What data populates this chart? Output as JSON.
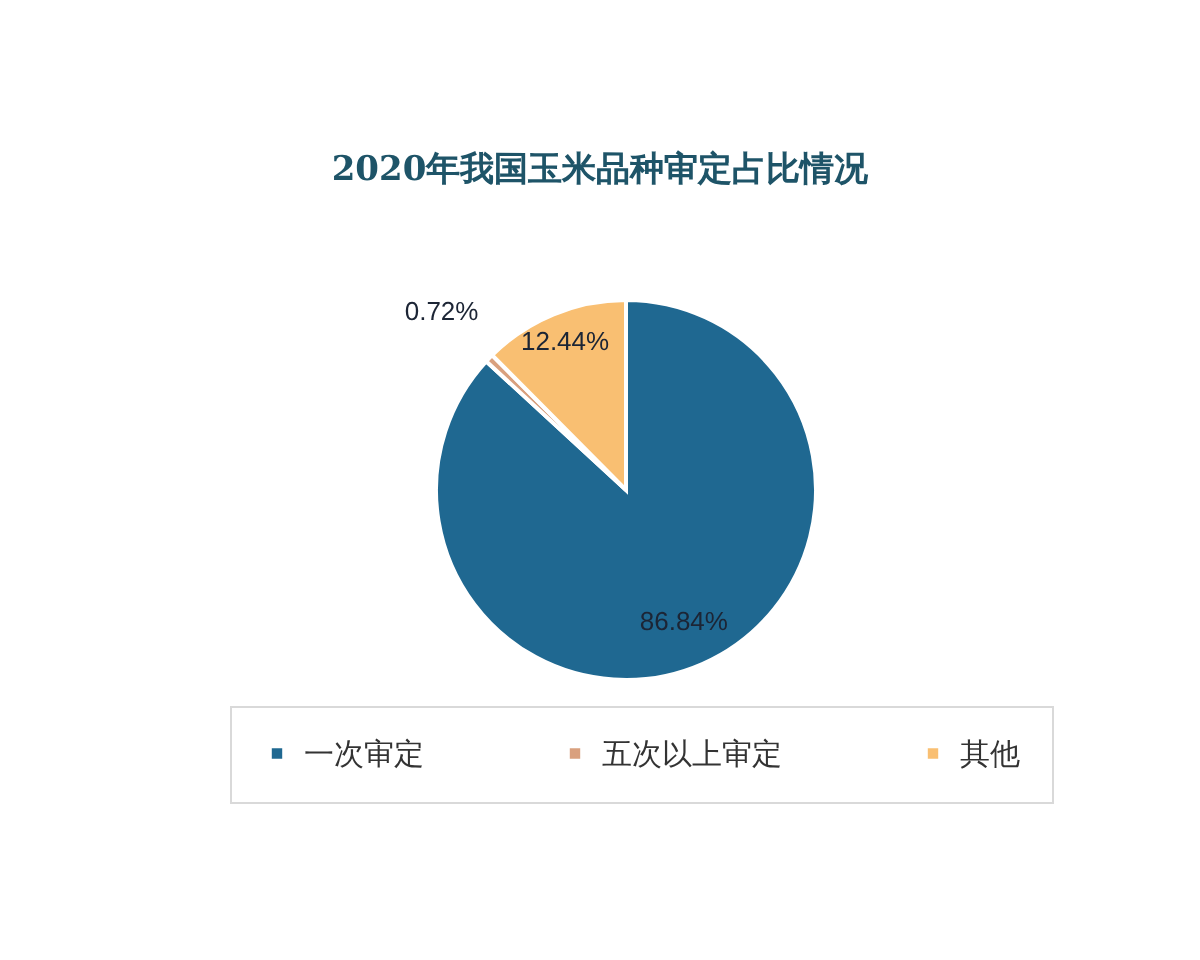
{
  "chart_data": {
    "type": "pie",
    "title": "2020年我国玉米品种审定占比情况",
    "categories": [
      "一次审定",
      "五次以上审定",
      "其他"
    ],
    "values": [
      86.84,
      0.72,
      12.44
    ],
    "colors": [
      "#1f6891",
      "#d9a07e",
      "#f9bf72"
    ],
    "value_labels": [
      "86.84%",
      "0.72%",
      "12.44%"
    ],
    "legend": "bottom"
  }
}
